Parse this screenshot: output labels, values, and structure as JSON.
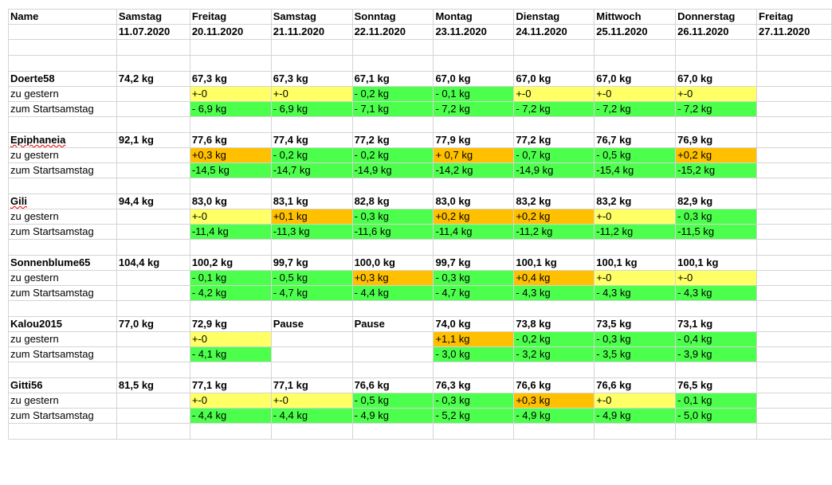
{
  "colors": {
    "green": "#4dff4d",
    "yellow": "#ffff66",
    "orange": "#ffc000",
    "grid": "#d4d4d4"
  },
  "header": {
    "top": [
      "Name",
      "Samstag",
      "Freitag",
      "Samstag",
      "Sonntag",
      "Montag",
      "Dienstag",
      "Mittwoch",
      "Donnerstag",
      "Freitag"
    ],
    "dates": [
      "",
      "11.07.2020",
      "20.11.2020",
      "21.11.2020",
      "22.11.2020",
      "23.11.2020",
      "24.11.2020",
      "25.11.2020",
      "26.11.2020",
      "27.11.2020"
    ]
  },
  "blocks": [
    {
      "name": "Doerte58",
      "spell": false,
      "start": "74,2 kg",
      "weights": [
        "67,3 kg",
        "67,3 kg",
        "67,1 kg",
        "67,0 kg",
        "67,0 kg",
        "67,0 kg",
        "67,0 kg",
        ""
      ],
      "label_day": "zu gestern",
      "day": [
        [
          "+-0",
          "yellow"
        ],
        [
          "+-0",
          "yellow"
        ],
        [
          "- 0,2 kg",
          "green"
        ],
        [
          "- 0,1 kg",
          "green"
        ],
        [
          "+-0",
          "yellow"
        ],
        [
          "+-0",
          "yellow"
        ],
        [
          "+-0",
          "yellow"
        ],
        [
          "",
          ""
        ]
      ],
      "label_total": "zum Startsamstag",
      "total": [
        [
          "- 6,9 kg",
          "green"
        ],
        [
          "- 6,9 kg",
          "green"
        ],
        [
          "- 7,1 kg",
          "green"
        ],
        [
          "- 7,2 kg",
          "green"
        ],
        [
          "- 7,2 kg",
          "green"
        ],
        [
          "- 7,2 kg",
          "green"
        ],
        [
          "- 7,2 kg",
          "green"
        ],
        [
          "",
          ""
        ]
      ]
    },
    {
      "name": "Epiphaneia",
      "spell": true,
      "start": "92,1 kg",
      "weights": [
        "77,6 kg",
        "77,4 kg",
        "77,2 kg",
        "77,9 kg",
        "77,2 kg",
        "76,7 kg",
        "76,9 kg",
        ""
      ],
      "label_day": "zu gestern",
      "day": [
        [
          "+0,3 kg",
          "orange"
        ],
        [
          "- 0,2 kg",
          "green"
        ],
        [
          "- 0,2 kg",
          "green"
        ],
        [
          "+ 0,7 kg",
          "orange"
        ],
        [
          "- 0,7 kg",
          "green"
        ],
        [
          "- 0,5 kg",
          "green"
        ],
        [
          "+0,2 kg",
          "orange"
        ],
        [
          "",
          ""
        ]
      ],
      "label_total": "zum Startsamstag",
      "total": [
        [
          "-14,5 kg",
          "green"
        ],
        [
          "-14,7 kg",
          "green"
        ],
        [
          "-14,9 kg",
          "green"
        ],
        [
          "-14,2 kg",
          "green"
        ],
        [
          "-14,9 kg",
          "green"
        ],
        [
          "-15,4 kg",
          "green"
        ],
        [
          "-15,2 kg",
          "green"
        ],
        [
          "",
          ""
        ]
      ]
    },
    {
      "name": "Gili",
      "spell": true,
      "start": "94,4 kg",
      "weights": [
        "83,0 kg",
        "83,1 kg",
        "82,8 kg",
        "83,0 kg",
        "83,2 kg",
        "83,2 kg",
        "82,9 kg",
        ""
      ],
      "label_day": "zu gestern",
      "day": [
        [
          "+-0",
          "yellow"
        ],
        [
          "+0,1 kg",
          "orange"
        ],
        [
          "- 0,3 kg",
          "green"
        ],
        [
          "+0,2 kg",
          "orange"
        ],
        [
          "+0,2 kg",
          "orange"
        ],
        [
          "+-0",
          "yellow"
        ],
        [
          "- 0,3 kg",
          "green"
        ],
        [
          "",
          ""
        ]
      ],
      "label_total": "zum Startsamstag",
      "total": [
        [
          "-11,4 kg",
          "green"
        ],
        [
          "-11,3 kg",
          "green"
        ],
        [
          "-11,6 kg",
          "green"
        ],
        [
          "-11,4 kg",
          "green"
        ],
        [
          "-11,2 kg",
          "green"
        ],
        [
          "-11,2 kg",
          "green"
        ],
        [
          "-11,5 kg",
          "green"
        ],
        [
          "",
          ""
        ]
      ]
    },
    {
      "name": "Sonnenblume65",
      "spell": false,
      "start": "104,4 kg",
      "weights": [
        "100,2 kg",
        "99,7 kg",
        "100,0 kg",
        "99,7 kg",
        "100,1 kg",
        "100,1 kg",
        "100,1 kg",
        ""
      ],
      "label_day": "zu gestern",
      "day": [
        [
          "- 0,1 kg",
          "green"
        ],
        [
          "- 0,5 kg",
          "green"
        ],
        [
          "+0,3 kg",
          "orange"
        ],
        [
          "- 0,3 kg",
          "green"
        ],
        [
          "+0,4 kg",
          "orange"
        ],
        [
          "+-0",
          "yellow"
        ],
        [
          "+-0",
          "yellow"
        ],
        [
          "",
          ""
        ]
      ],
      "label_total": "zum Startsamstag",
      "total": [
        [
          "- 4,2 kg",
          "green"
        ],
        [
          "- 4,7 kg",
          "green"
        ],
        [
          "- 4,4 kg",
          "green"
        ],
        [
          "- 4,7 kg",
          "green"
        ],
        [
          "- 4,3 kg",
          "green"
        ],
        [
          "- 4,3 kg",
          "green"
        ],
        [
          "- 4,3 kg",
          "green"
        ],
        [
          "",
          ""
        ]
      ]
    },
    {
      "name": "Kalou2015",
      "spell": false,
      "start": "77,0 kg",
      "weights": [
        "72,9 kg",
        "Pause",
        "Pause",
        "74,0 kg",
        "73,8 kg",
        "73,5 kg",
        "73,1 kg",
        ""
      ],
      "label_day": "zu gestern",
      "day": [
        [
          "+-0",
          "yellow"
        ],
        [
          "",
          ""
        ],
        [
          "",
          ""
        ],
        [
          "+1,1 kg",
          "orange"
        ],
        [
          "- 0,2 kg",
          "green"
        ],
        [
          "- 0,3 kg",
          "green"
        ],
        [
          "- 0,4 kg",
          "green"
        ],
        [
          "",
          ""
        ]
      ],
      "label_total": "zum Startsamstag",
      "total": [
        [
          "- 4,1 kg",
          "green"
        ],
        [
          "",
          ""
        ],
        [
          "",
          ""
        ],
        [
          "- 3,0 kg",
          "green"
        ],
        [
          "- 3,2 kg",
          "green"
        ],
        [
          "- 3,5 kg",
          "green"
        ],
        [
          "- 3,9 kg",
          "green"
        ],
        [
          "",
          ""
        ]
      ]
    },
    {
      "name": "Gitti56",
      "spell": false,
      "start": "81,5 kg",
      "weights": [
        "77,1 kg",
        "77,1 kg",
        "76,6 kg",
        "76,3 kg",
        "76,6 kg",
        "76,6 kg",
        "76,5 kg",
        ""
      ],
      "label_day": "zu gestern",
      "day": [
        [
          "+-0",
          "yellow"
        ],
        [
          "+-0",
          "yellow"
        ],
        [
          "- 0,5 kg",
          "green"
        ],
        [
          "- 0,3 kg",
          "green"
        ],
        [
          "+0,3 kg",
          "orange"
        ],
        [
          "+-0",
          "yellow"
        ],
        [
          "- 0,1 kg",
          "green"
        ],
        [
          "",
          ""
        ]
      ],
      "label_total": "zum Startsamstag",
      "total": [
        [
          "- 4,4 kg",
          "green"
        ],
        [
          "- 4,4 kg",
          "green"
        ],
        [
          "- 4,9 kg",
          "green"
        ],
        [
          "- 5,2 kg",
          "green"
        ],
        [
          "- 4,9 kg",
          "green"
        ],
        [
          "- 4,9 kg",
          "green"
        ],
        [
          "- 5,0 kg",
          "green"
        ],
        [
          "",
          ""
        ]
      ]
    }
  ]
}
